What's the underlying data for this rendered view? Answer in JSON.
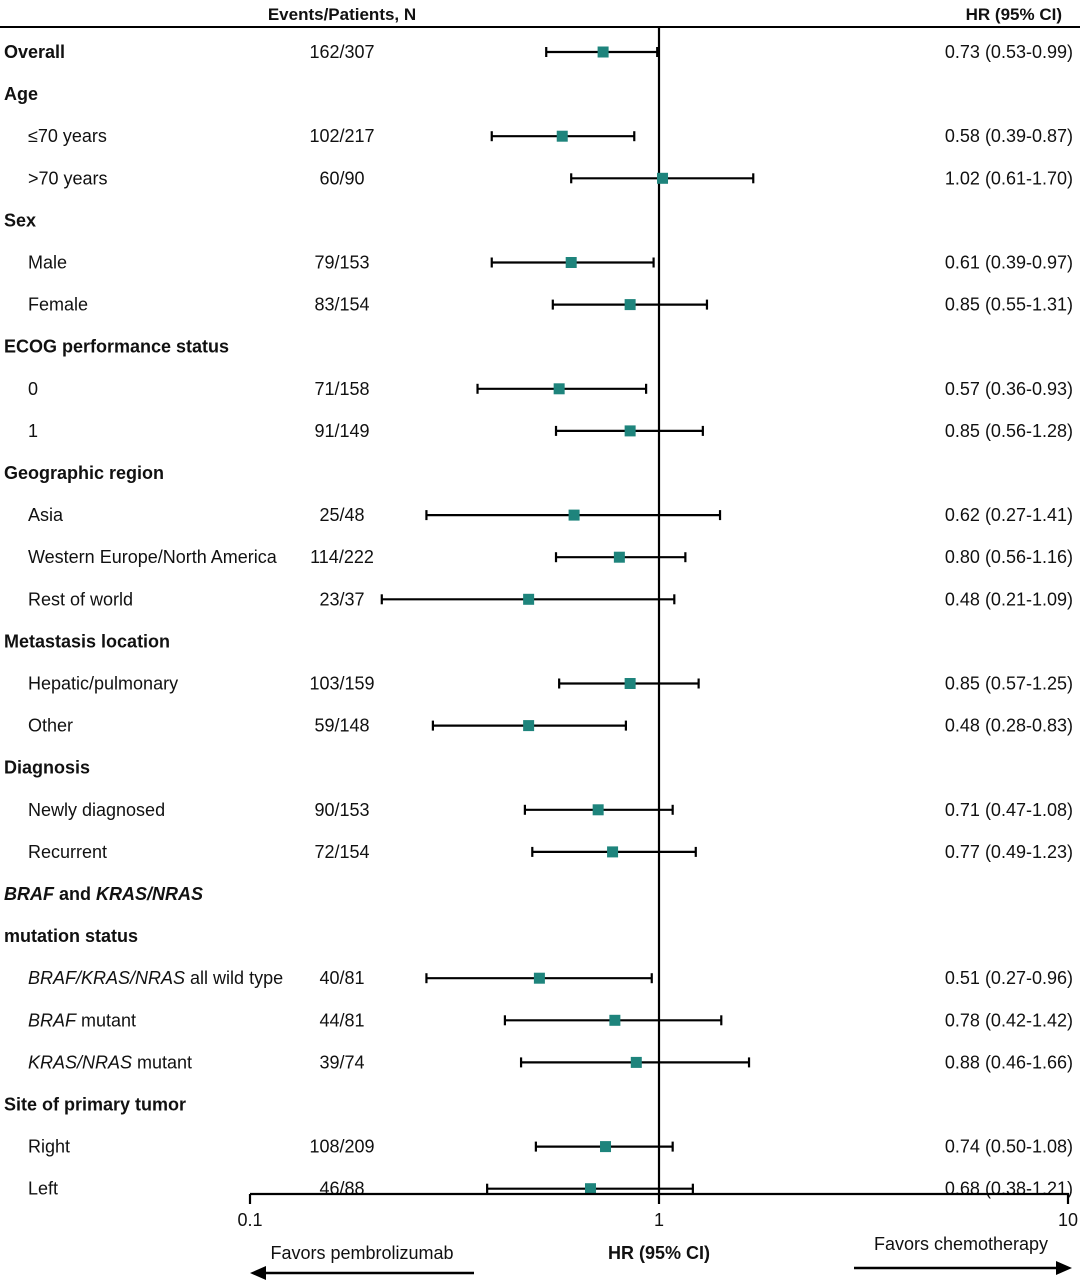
{
  "chart_data": {
    "type": "forest",
    "header": {
      "events_col": "Events/Patients, N",
      "hr_col": "HR (95%  CI)"
    },
    "x_axis": {
      "scale": "log",
      "ticks": [
        {
          "value": 0.1,
          "label": "0.1"
        },
        {
          "value": 1,
          "label": "1"
        },
        {
          "value": 10,
          "label": "10"
        }
      ],
      "label": "HR (95% CI)",
      "reference_line": 1,
      "left_annotation": "Favors pembrolizumab",
      "right_annotation": "Favors chemotherapy"
    },
    "marker_color": "#1e847c",
    "rows": [
      {
        "kind": "subgroup",
        "segments": [
          {
            "text": "Overall"
          }
        ],
        "events": "162/307",
        "hr": 0.73,
        "lo": 0.53,
        "hi": 0.99,
        "hr_text": "0.73 (0.53-0.99)"
      },
      {
        "kind": "header",
        "segments": [
          {
            "text": "Age"
          }
        ]
      },
      {
        "kind": "item",
        "segments": [
          {
            "text": "≤70 years"
          }
        ],
        "events": "102/217",
        "hr": 0.58,
        "lo": 0.39,
        "hi": 0.87,
        "hr_text": "0.58 (0.39-0.87)"
      },
      {
        "kind": "item",
        "segments": [
          {
            "text": ">70 years"
          }
        ],
        "events": "60/90",
        "hr": 1.02,
        "lo": 0.61,
        "hi": 1.7,
        "hr_text": "1.02 (0.61-1.70)"
      },
      {
        "kind": "header",
        "segments": [
          {
            "text": "Sex"
          }
        ]
      },
      {
        "kind": "item",
        "segments": [
          {
            "text": "Male"
          }
        ],
        "events": "79/153",
        "hr": 0.61,
        "lo": 0.39,
        "hi": 0.97,
        "hr_text": "0.61 (0.39-0.97)"
      },
      {
        "kind": "item",
        "segments": [
          {
            "text": "Female"
          }
        ],
        "events": "83/154",
        "hr": 0.85,
        "lo": 0.55,
        "hi": 1.31,
        "hr_text": "0.85 (0.55-1.31)"
      },
      {
        "kind": "header",
        "segments": [
          {
            "text": "ECOG performance status"
          }
        ]
      },
      {
        "kind": "item",
        "segments": [
          {
            "text": "0"
          }
        ],
        "events": "71/158",
        "hr": 0.57,
        "lo": 0.36,
        "hi": 0.93,
        "hr_text": "0.57 (0.36-0.93)"
      },
      {
        "kind": "item",
        "segments": [
          {
            "text": "1"
          }
        ],
        "events": "91/149",
        "hr": 0.85,
        "lo": 0.56,
        "hi": 1.28,
        "hr_text": "0.85 (0.56-1.28)"
      },
      {
        "kind": "header",
        "segments": [
          {
            "text": "Geographic region"
          }
        ]
      },
      {
        "kind": "item",
        "segments": [
          {
            "text": "Asia"
          }
        ],
        "events": "25/48",
        "hr": 0.62,
        "lo": 0.27,
        "hi": 1.41,
        "hr_text": "0.62 (0.27-1.41)"
      },
      {
        "kind": "item",
        "segments": [
          {
            "text": "Western Europe/North America"
          }
        ],
        "events": "114/222",
        "hr": 0.8,
        "lo": 0.56,
        "hi": 1.16,
        "hr_text": "0.80 (0.56-1.16)"
      },
      {
        "kind": "item",
        "segments": [
          {
            "text": "Rest of world"
          }
        ],
        "events": "23/37",
        "hr": 0.48,
        "lo": 0.21,
        "hi": 1.09,
        "hr_text": "0.48 (0.21-1.09)"
      },
      {
        "kind": "header",
        "segments": [
          {
            "text": "Metastasis location"
          }
        ]
      },
      {
        "kind": "item",
        "segments": [
          {
            "text": "Hepatic/pulmonary"
          }
        ],
        "events": "103/159",
        "hr": 0.85,
        "lo": 0.57,
        "hi": 1.25,
        "hr_text": "0.85 (0.57-1.25)"
      },
      {
        "kind": "item",
        "segments": [
          {
            "text": "Other"
          }
        ],
        "events": "59/148",
        "hr": 0.48,
        "lo": 0.28,
        "hi": 0.83,
        "hr_text": "0.48 (0.28-0.83)"
      },
      {
        "kind": "header",
        "segments": [
          {
            "text": "Diagnosis"
          }
        ]
      },
      {
        "kind": "item",
        "segments": [
          {
            "text": "Newly diagnosed"
          }
        ],
        "events": "90/153",
        "hr": 0.71,
        "lo": 0.47,
        "hi": 1.08,
        "hr_text": "0.71 (0.47-1.08)"
      },
      {
        "kind": "item",
        "segments": [
          {
            "text": "Recurrent"
          }
        ],
        "events": "72/154",
        "hr": 0.77,
        "lo": 0.49,
        "hi": 1.23,
        "hr_text": "0.77 (0.49-1.23)"
      },
      {
        "kind": "header",
        "segments": [
          {
            "text": "BRAF",
            "italic": true
          },
          {
            "text": " and "
          },
          {
            "text": "KRAS/NRAS",
            "italic": true
          }
        ]
      },
      {
        "kind": "header",
        "segments": [
          {
            "text": "mutation status"
          }
        ]
      },
      {
        "kind": "item",
        "segments": [
          {
            "text": "BRAF/KRAS/NRAS",
            "italic": true
          },
          {
            "text": " all wild type"
          }
        ],
        "events": "40/81",
        "hr": 0.51,
        "lo": 0.27,
        "hi": 0.96,
        "hr_text": "0.51 (0.27-0.96)"
      },
      {
        "kind": "item",
        "segments": [
          {
            "text": "BRAF",
            "italic": true
          },
          {
            "text": " mutant"
          }
        ],
        "events": "44/81",
        "hr": 0.78,
        "lo": 0.42,
        "hi": 1.42,
        "hr_text": "0.78 (0.42-1.42)"
      },
      {
        "kind": "item",
        "segments": [
          {
            "text": "KRAS/NRAS",
            "italic": true
          },
          {
            "text": " mutant"
          }
        ],
        "events": "39/74",
        "hr": 0.88,
        "lo": 0.46,
        "hi": 1.66,
        "hr_text": "0.88 (0.46-1.66)"
      },
      {
        "kind": "header",
        "segments": [
          {
            "text": "Site of primary tumor"
          }
        ]
      },
      {
        "kind": "item",
        "segments": [
          {
            "text": "Right"
          }
        ],
        "events": "108/209",
        "hr": 0.74,
        "lo": 0.5,
        "hi": 1.08,
        "hr_text": "0.74 (0.50-1.08)"
      },
      {
        "kind": "item",
        "segments": [
          {
            "text": "Left"
          }
        ],
        "events": "46/88",
        "hr": 0.68,
        "lo": 0.38,
        "hi": 1.21,
        "hr_text": "0.68 (0.38-1.21)"
      }
    ]
  }
}
